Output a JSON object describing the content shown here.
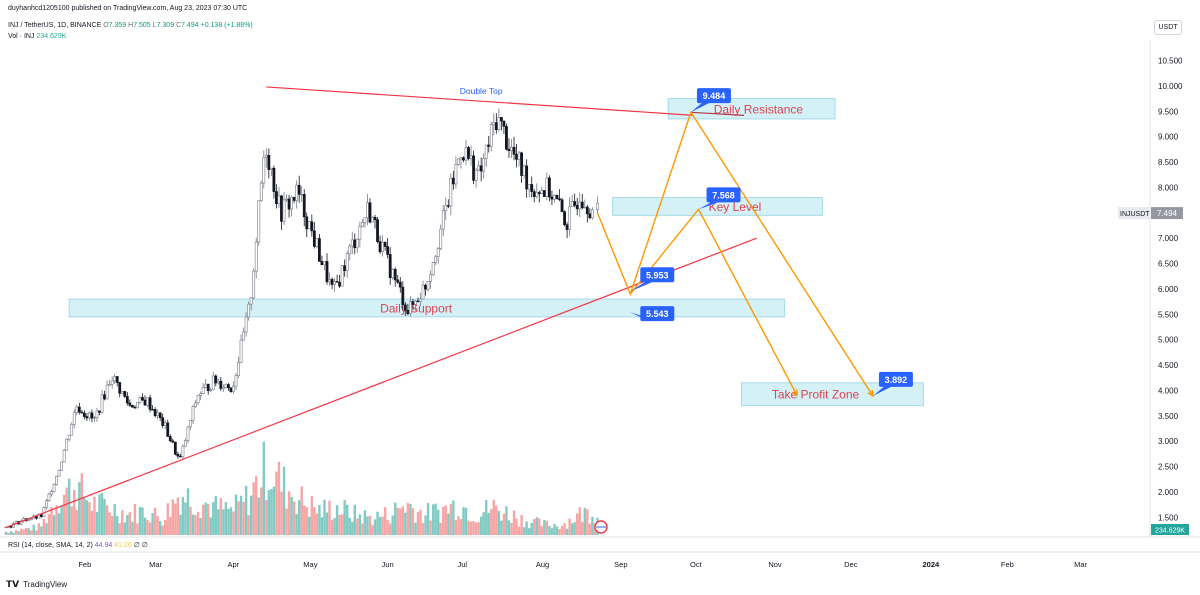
{
  "header": {
    "publisher_line": "duyhanhcd1205100 published on TradingView.com, Aug 23, 2023 07:30 UTC",
    "symbol_line": "INJ / TetherUS, 1D, BINANCE",
    "ohlc": {
      "open_label": "O",
      "open": "7.359",
      "high_label": "H",
      "high": "7.505",
      "low_label": "L",
      "low": "7.309",
      "close_label": "C",
      "close": "7.494",
      "change": "+0.138 (+1.88%)"
    },
    "volume_label": "Vol · INJ",
    "volume_value": "234.629K",
    "currency_badge": "USDT"
  },
  "chart_data": {
    "type": "candlestick",
    "symbol": "INJUSDT",
    "last_price": "7.494",
    "last_volume": "234.629K",
    "y_axis": {
      "scale": "linear",
      "ylim": [
        1.25,
        10.55
      ],
      "tick_labels": [
        "10.500",
        "10.000",
        "9.500",
        "9.000",
        "8.500",
        "8.000",
        "7.500",
        "7.000",
        "6.500",
        "6.000",
        "5.500",
        "5.000",
        "4.500",
        "4.000",
        "3.500",
        "3.000",
        "2.500",
        "2.000",
        "1.500"
      ]
    },
    "x_axis": {
      "tick_labels": [
        "Feb",
        "Mar",
        "Apr",
        "May",
        "Jun",
        "Jul",
        "Aug",
        "Sep",
        "Oct",
        "Nov",
        "Dec",
        "2024",
        "Feb",
        "Mar"
      ]
    },
    "close_path": [
      [
        "2023-01-01",
        1.3
      ],
      [
        "2023-01-08",
        1.45
      ],
      [
        "2023-01-15",
        1.52
      ],
      [
        "2023-01-22",
        2.45
      ],
      [
        "2023-01-29",
        3.7
      ],
      [
        "2023-02-05",
        3.4
      ],
      [
        "2023-02-12",
        4.3
      ],
      [
        "2023-02-19",
        3.7
      ],
      [
        "2023-02-26",
        3.8
      ],
      [
        "2023-03-05",
        3.3
      ],
      [
        "2023-03-11",
        2.6
      ],
      [
        "2023-03-18",
        3.9
      ],
      [
        "2023-03-25",
        4.2
      ],
      [
        "2023-04-01",
        4.05
      ],
      [
        "2023-04-08",
        5.7
      ],
      [
        "2023-04-14",
        8.9
      ],
      [
        "2023-04-20",
        7.5
      ],
      [
        "2023-04-27",
        7.9
      ],
      [
        "2023-05-04",
        6.9
      ],
      [
        "2023-05-11",
        5.9
      ],
      [
        "2023-05-18",
        6.8
      ],
      [
        "2023-05-25",
        7.6
      ],
      [
        "2023-06-01",
        6.6
      ],
      [
        "2023-06-10",
        5.55
      ],
      [
        "2023-06-17",
        6.1
      ],
      [
        "2023-06-24",
        7.4
      ],
      [
        "2023-07-01",
        8.8
      ],
      [
        "2023-07-08",
        8.2
      ],
      [
        "2023-07-15",
        9.4
      ],
      [
        "2023-07-22",
        8.6
      ],
      [
        "2023-07-29",
        8.0
      ],
      [
        "2023-08-05",
        7.95
      ],
      [
        "2023-08-12",
        7.3
      ],
      [
        "2023-08-17",
        7.9
      ],
      [
        "2023-08-23",
        7.494
      ]
    ],
    "volume_relative": [
      0.05,
      0.08,
      0.12,
      0.55,
      0.7,
      0.45,
      0.4,
      0.3,
      0.35,
      0.25,
      0.6,
      0.5,
      0.4,
      0.35,
      0.55,
      1.0,
      0.7,
      0.5,
      0.35,
      0.4,
      0.3,
      0.25,
      0.3,
      0.45,
      0.3,
      0.35,
      0.45,
      0.3,
      0.4,
      0.3,
      0.2,
      0.15,
      0.15,
      0.3,
      0.35
    ],
    "zones": [
      {
        "label": "Daily Resistance",
        "price_low": 9.35,
        "price_high": 9.75
      },
      {
        "label": "Key Level",
        "price_low": 7.45,
        "price_high": 7.8
      },
      {
        "label": "Daily Support",
        "price_low": 5.45,
        "price_high": 5.8
      },
      {
        "label": "Take Profit Zone",
        "price_low": 3.7,
        "price_high": 4.15
      }
    ],
    "trendlines": [
      {
        "name": "descending-resistance",
        "from": [
          "2023-04-14",
          9.98
        ],
        "to": [
          "2023-09-30",
          9.42
        ]
      },
      {
        "name": "ascending-support",
        "from": [
          "2023-01-01",
          1.3
        ],
        "to": [
          "2023-10-25",
          7.0
        ]
      }
    ],
    "projection_paths": [
      {
        "points": [
          [
            "2023-08-23",
            7.5
          ],
          [
            "2023-09-05",
            5.9
          ],
          [
            "2023-09-29",
            9.48
          ],
          [
            "2023-12-10",
            3.89
          ]
        ]
      },
      {
        "points": [
          [
            "2023-09-05",
            5.9
          ],
          [
            "2023-10-02",
            7.57
          ],
          [
            "2023-11-10",
            3.9
          ]
        ]
      }
    ],
    "price_callouts": [
      {
        "label": "9.484",
        "date": "2023-09-29",
        "price": 9.484
      },
      {
        "label": "7.568",
        "date": "2023-10-02",
        "price": 7.568
      },
      {
        "label": "5.953",
        "date": "2023-09-05",
        "price": 5.953
      },
      {
        "label": "5.543",
        "date": "2023-09-05",
        "price": 5.543
      },
      {
        "label": "3.892",
        "date": "2023-12-10",
        "price": 3.892
      }
    ],
    "annotations": [
      {
        "text": "Double Top",
        "date": "2023-07-08",
        "price": 9.9
      }
    ],
    "colors": {
      "up": "#9aa0a6",
      "down": "#131722",
      "vol_up": "#80cbc4",
      "vol_down": "#f8a5a5",
      "trendline": "#f23645",
      "projection": "#ff9800",
      "zone_fill": "#d4f1f7",
      "zone_border": "#a5dbe8",
      "callout": "#2962ff",
      "zone_text": "#e0424e"
    }
  },
  "rsi_pane": {
    "label": "RSI (14, close, SMA, 14, 2)",
    "rsi_value": "44.94",
    "sma_value": "41.20",
    "extra_1": "∅",
    "extra_2": "∅"
  },
  "footer": {
    "logo_text": "TradingView"
  }
}
